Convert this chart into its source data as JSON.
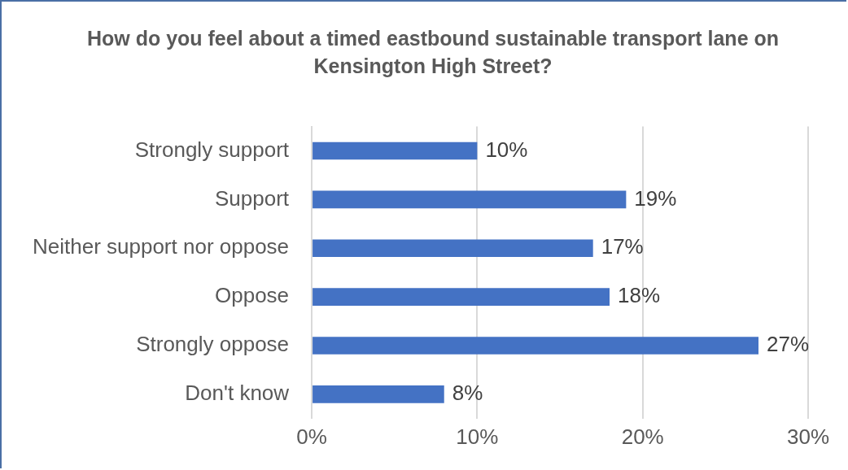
{
  "chart_data": {
    "type": "bar",
    "orientation": "horizontal",
    "title": "How do you feel about a timed eastbound sustainable transport lane on Kensington High Street?",
    "categories": [
      "Strongly support",
      "Support",
      "Neither support nor oppose",
      "Oppose",
      "Strongly oppose",
      "Don't know"
    ],
    "values": [
      10,
      19,
      17,
      18,
      27,
      8
    ],
    "value_labels": [
      "10%",
      "19%",
      "17%",
      "18%",
      "27%",
      "8%"
    ],
    "color": "#4472c4",
    "xlim": [
      0,
      30
    ],
    "xticks": [
      {
        "value": 0,
        "label": "0%"
      },
      {
        "value": 10,
        "label": "10%"
      },
      {
        "value": 20,
        "label": "20%"
      },
      {
        "value": 30,
        "label": "30%"
      }
    ],
    "grid": "x",
    "legend": false
  }
}
